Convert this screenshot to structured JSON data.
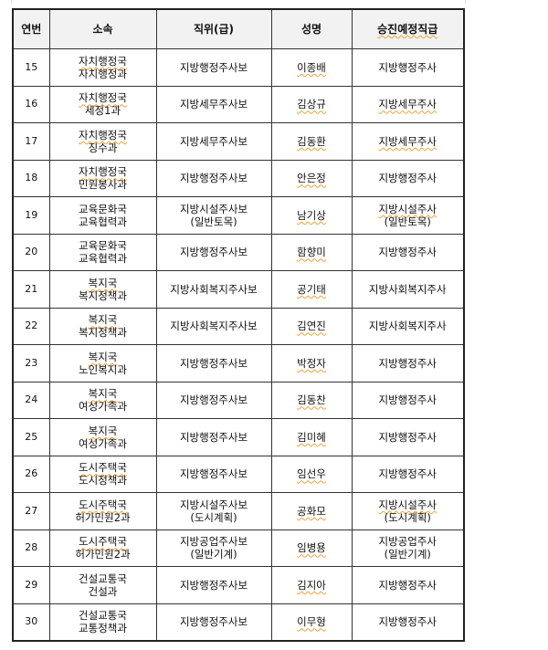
{
  "headers": [
    "연번",
    "소속",
    "직위(급)",
    "성명",
    "승진예정직급"
  ],
  "rows": [
    {
      "no": "15",
      "dept1": "자치행정국",
      "dept2": "자치행정과",
      "pos1": "지방행정주사보",
      "pos2": "",
      "name": "이종배",
      "promo1": "지방행정주사",
      "promo2": ""
    },
    {
      "no": "16",
      "dept1": "자치행정국",
      "dept2": "세정1과",
      "pos1": "지방세무주사보",
      "pos2": "",
      "name": "김상규",
      "promo1": "지방세무주사",
      "promo2": ""
    },
    {
      "no": "17",
      "dept1": "자치행정국",
      "dept2": "징수과",
      "pos1": "지방세무주사보",
      "pos2": "",
      "name": "김동환",
      "promo1": "지방세무주사",
      "promo2": ""
    },
    {
      "no": "18",
      "dept1": "자치행정국",
      "dept2": "민원봉사과",
      "pos1": "지방행정주사보",
      "pos2": "",
      "name": "안은정",
      "promo1": "지방행정주사",
      "promo2": ""
    },
    {
      "no": "19",
      "dept1": "교육문화국",
      "dept2": "교육협력과",
      "pos1": "지방시설주사보",
      "pos2": "(일반토목)",
      "name": "남기상",
      "promo1": "지방시설주사",
      "promo2": "(일반토목)"
    },
    {
      "no": "20",
      "dept1": "교육문화국",
      "dept2": "교육협력과",
      "pos1": "지방행정주사보",
      "pos2": "",
      "name": "함향미",
      "promo1": "지방행정주사",
      "promo2": ""
    },
    {
      "no": "21",
      "dept1": "복지국",
      "dept2": "복지정책과",
      "pos1": "지방사회복지주사보",
      "pos2": "",
      "name": "공기태",
      "promo1": "지방사회복지주사",
      "promo2": ""
    },
    {
      "no": "22",
      "dept1": "복지국",
      "dept2": "복지정책과",
      "pos1": "지방사회복지주사보",
      "pos2": "",
      "name": "김연진",
      "promo1": "지방사회복지주사",
      "promo2": ""
    },
    {
      "no": "23",
      "dept1": "복지국",
      "dept2": "노인복지과",
      "pos1": "지방행정주사보",
      "pos2": "",
      "name": "박정자",
      "promo1": "지방행정주사",
      "promo2": ""
    },
    {
      "no": "24",
      "dept1": "복지국",
      "dept2": "여성가족과",
      "pos1": "지방행정주사보",
      "pos2": "",
      "name": "김동찬",
      "promo1": "지방행정주사",
      "promo2": ""
    },
    {
      "no": "25",
      "dept1": "복지국",
      "dept2": "여성가족과",
      "pos1": "지방행정주사보",
      "pos2": "",
      "name": "김미혜",
      "promo1": "지방행정주사",
      "promo2": ""
    },
    {
      "no": "26",
      "dept1": "도시주택국",
      "dept2": "도시정책과",
      "pos1": "지방행정주사보",
      "pos2": "",
      "name": "임선우",
      "promo1": "지방행정주사",
      "promo2": ""
    },
    {
      "no": "27",
      "dept1": "도시주택국",
      "dept2": "허가민원2과",
      "pos1": "지방시설주사보",
      "pos2": "(도시계획)",
      "name": "공화모",
      "promo1": "지방시설주사",
      "promo2": "(도시계획)"
    },
    {
      "no": "28",
      "dept1": "도시주택국",
      "dept2": "허가민원2과",
      "pos1": "지방공업주사보",
      "pos2": "(일반기계)",
      "name": "임병용",
      "promo1": "지방공업주사",
      "promo2": "(일반기계)"
    },
    {
      "no": "29",
      "dept1": "건설교통국",
      "dept2": "건설과",
      "pos1": "지방행정주사보",
      "pos2": "",
      "name": "김지아",
      "promo1": "지방행정주사",
      "promo2": ""
    },
    {
      "no": "30",
      "dept1": "건설교통국",
      "dept2": "교통정책과",
      "pos1": "지방행정주사보",
      "pos2": "",
      "name": "이무형",
      "promo1": "지방행정주사",
      "promo2": ""
    }
  ]
}
